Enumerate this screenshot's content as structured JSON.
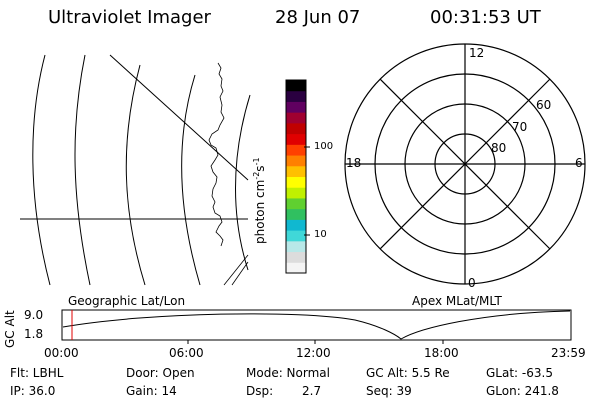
{
  "header": {
    "title": "Ultraviolet Imager",
    "date": "28 Jun 07",
    "time": "00:31:53 UT"
  },
  "colorbar": {
    "unit_prefix": "photon cm",
    "unit_exp1": "-2",
    "unit_mid": "s",
    "unit_exp2": "-1",
    "tick_100": "100",
    "tick_10": "10",
    "colors": [
      "#f4f4f4",
      "#dcdcdc",
      "#b8e8e8",
      "#40d8d8",
      "#10b8d0",
      "#30c060",
      "#60d030",
      "#c0f000",
      "#ffff00",
      "#ffc000",
      "#ff8000",
      "#ff4000",
      "#e00000",
      "#c00000",
      "#a00030",
      "#600060",
      "#2a0040",
      "#000000"
    ]
  },
  "map_left": {
    "label": "Geographic Lat/Lon"
  },
  "polar": {
    "label": "Apex MLat/MLT",
    "mlt_12": "12",
    "mlt_18": "18",
    "mlt_6": "6",
    "mlt_0": "0",
    "lat_60": "60",
    "lat_70": "70",
    "lat_80": "80"
  },
  "altitude_plot": {
    "ylabel": "GC Alt",
    "y_max": "9.0",
    "y_min": "1.8",
    "x_ticks": [
      "00:00",
      "06:00",
      "12:00",
      "18:00",
      "23:59"
    ],
    "marker_color": "#e00000"
  },
  "status": {
    "flt": "Flt: LBHL",
    "ip": "IP: 36.0",
    "door": "Door: Open",
    "gain": "Gain: 14",
    "mode": "Mode: Normal",
    "dsp_label": "Dsp:",
    "dsp_value": "2.7",
    "gc_alt": "GC Alt: 5.5 Re",
    "seq": "Seq: 39",
    "glat": "GLat: -63.5",
    "glon": "GLon: 241.8"
  }
}
